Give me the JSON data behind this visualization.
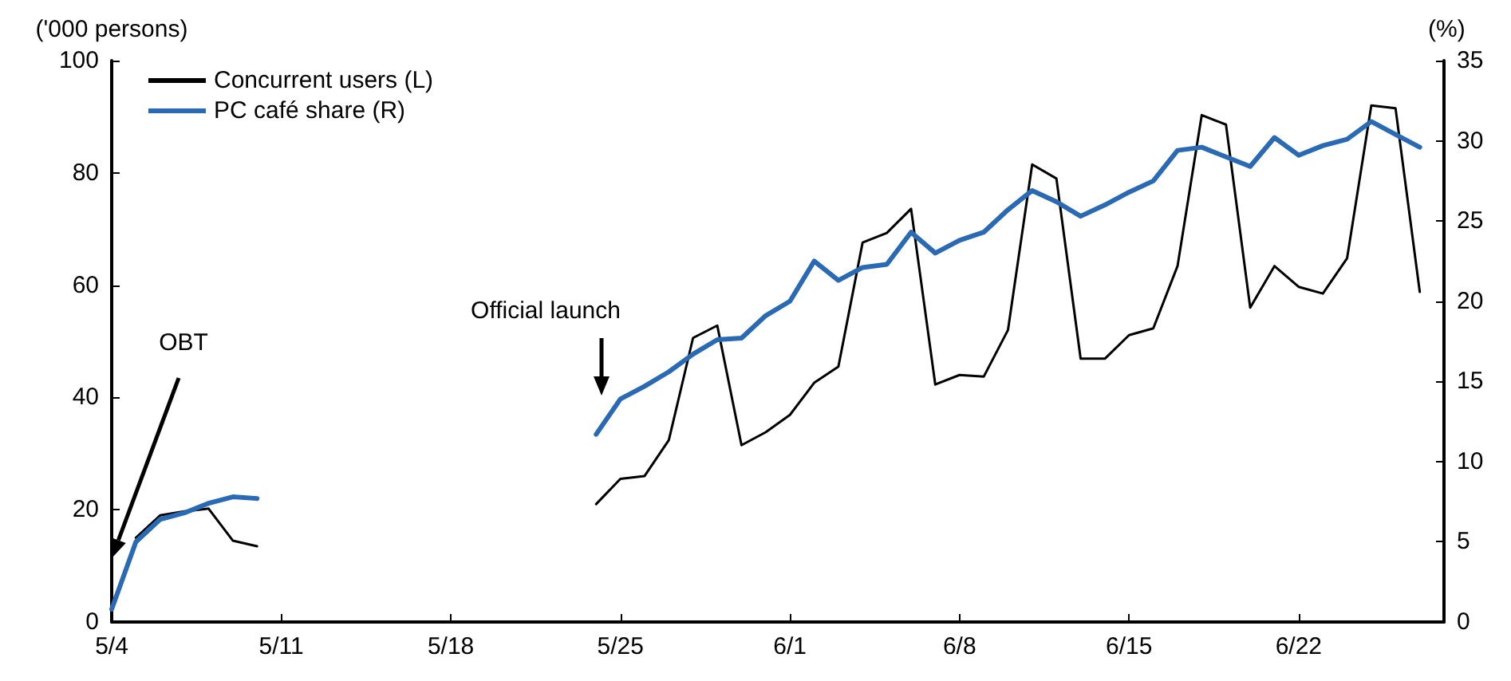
{
  "chart_data": {
    "type": "line",
    "ylabel": "('000 persons)",
    "y2label": "(%)",
    "x": [
      "--05-04",
      "--05-05",
      "--05-06",
      "--05-07",
      "--05-08",
      "--05-09",
      "--05-10",
      "--05-11",
      "--05-12",
      "--05-13",
      "--05-14",
      "--05-15",
      "--05-16",
      "--05-17",
      "--05-18",
      "--05-19",
      "--05-20",
      "--05-21",
      "--05-22",
      "--05-23",
      "--05-24",
      "--05-25",
      "--05-26",
      "--05-27",
      "--05-28",
      "--05-29",
      "--05-30",
      "--05-31",
      "--06-01",
      "--06-02",
      "--06-03",
      "--06-04",
      "--06-05",
      "--06-06",
      "--06-07",
      "--06-08",
      "--06-09",
      "--06-10",
      "--06-11",
      "--06-12",
      "--06-13",
      "--06-14",
      "--06-15",
      "--06-16",
      "--06-17",
      "--06-18",
      "--06-19",
      "--06-20",
      "--06-21",
      "--06-22",
      "--06-23",
      "--06-24",
      "--06-25",
      "--06-26",
      "--06-27"
    ],
    "series": [
      {
        "name": "Concurrent users (L)",
        "color": "#000000",
        "values": [
          null,
          15,
          19,
          19.7,
          20.2,
          14.5,
          13.5,
          null,
          null,
          null,
          null,
          null,
          null,
          null,
          null,
          null,
          null,
          null,
          null,
          null,
          21,
          25.5,
          26,
          32.4,
          50.6,
          52.8,
          31.5,
          33.8,
          36.9,
          42.6,
          45.5,
          67.6,
          69.3,
          73.6,
          42.3,
          44,
          43.7,
          52,
          81.5,
          79,
          46.9,
          46.9,
          51.1,
          52.3,
          63.4,
          90.3,
          88.6,
          56,
          63.4,
          59.7,
          58.5,
          64.8,
          92,
          91.5,
          58.8
        ]
      },
      {
        "name": "PC café share (R)",
        "color": "#2a6ab5",
        "axis": "y2",
        "values": [
          0.8,
          5.0,
          6.4,
          6.8,
          7.4,
          7.8,
          7.7,
          null,
          null,
          null,
          null,
          null,
          null,
          null,
          null,
          null,
          null,
          null,
          null,
          null,
          11.7,
          13.9,
          14.7,
          15.6,
          16.7,
          17.6,
          17.7,
          19.1,
          20.0,
          22.5,
          21.3,
          22.1,
          22.3,
          24.3,
          23.0,
          23.8,
          24.3,
          25.7,
          26.9,
          26.2,
          25.3,
          26.0,
          26.8,
          27.5,
          29.4,
          29.6,
          29.0,
          28.4,
          30.2,
          29.1,
          29.7,
          30.1,
          31.2,
          30.4,
          29.6
        ]
      }
    ],
    "xlim": [
      "--05-04",
      "--06-28"
    ],
    "xticks": [
      {
        "value": "--05-04",
        "label": "5/4"
      },
      {
        "value": "--05-11",
        "label": "5/11"
      },
      {
        "value": "--05-18",
        "label": "5/18"
      },
      {
        "value": "--05-25",
        "label": "5/25"
      },
      {
        "value": "--06-01",
        "label": "6/1"
      },
      {
        "value": "--06-08",
        "label": "6/8"
      },
      {
        "value": "--06-15",
        "label": "6/15"
      },
      {
        "value": "--06-22",
        "label": "6/22"
      }
    ],
    "ylim": [
      0,
      100
    ],
    "yticks": [
      0,
      20,
      40,
      60,
      80,
      100
    ],
    "y2lim": [
      0,
      35
    ],
    "y2ticks": [
      0,
      5,
      10,
      15,
      20,
      25,
      30,
      35
    ],
    "annotations": [
      "OBT",
      "Official launch"
    ],
    "grid": false,
    "legend": "top left",
    "marker": "none",
    "line_style": "solid"
  }
}
